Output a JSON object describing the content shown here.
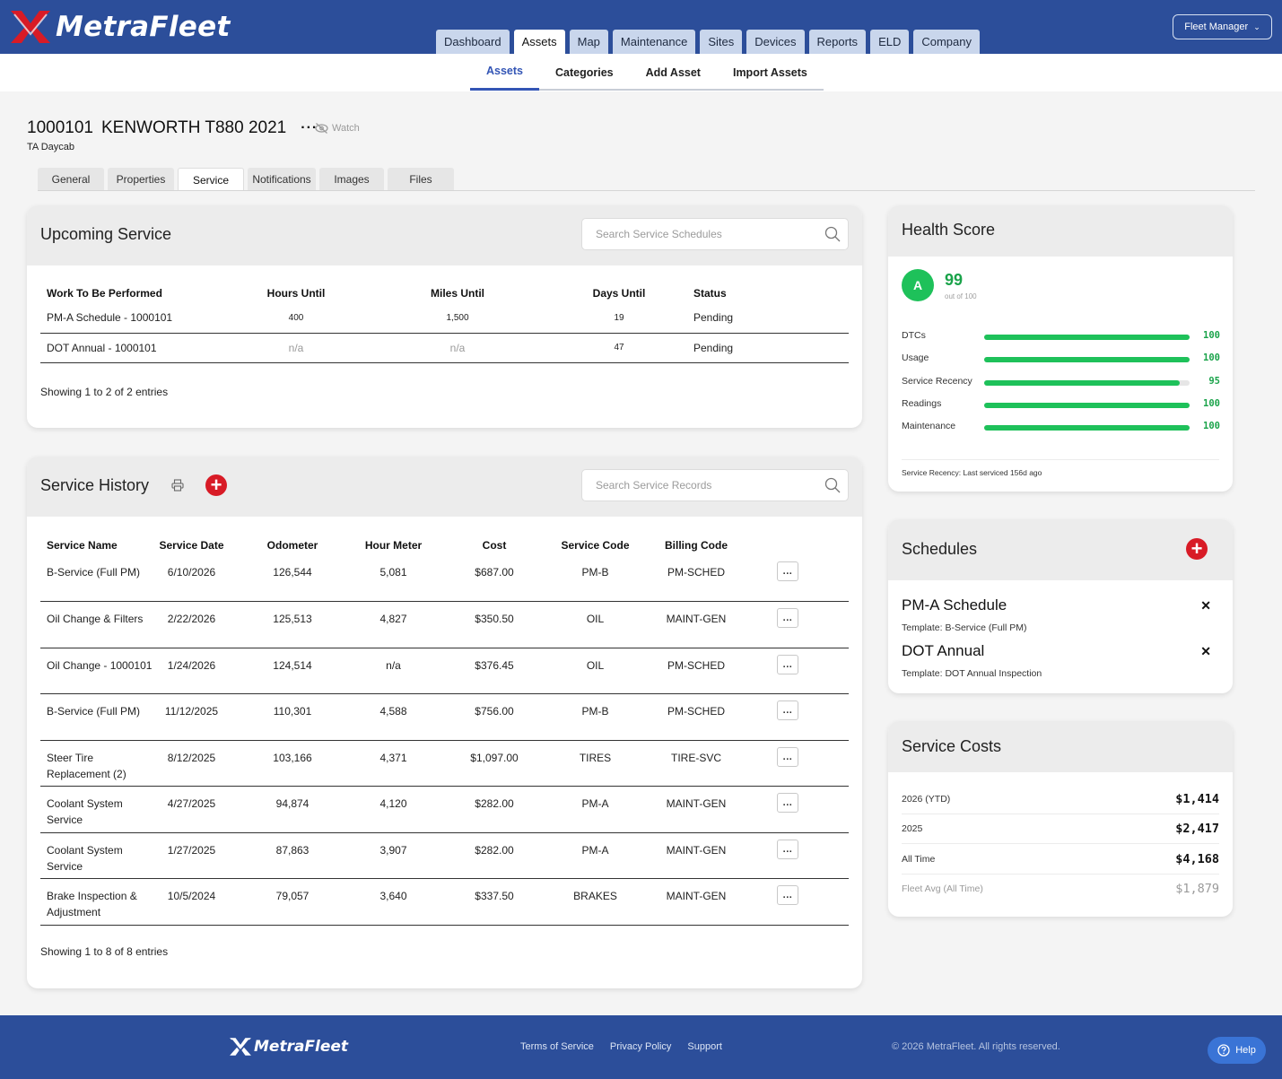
{
  "brand": {
    "name": "MetraFleet",
    "accent": "#2c4e9a",
    "danger": "#d81b26",
    "success": "#1ec15a"
  },
  "main_nav": [
    "Dashboard",
    "Assets",
    "Map",
    "Maintenance",
    "Sites",
    "Devices",
    "Reports",
    "ELD",
    "Company"
  ],
  "main_nav_active": "Assets",
  "user_menu": {
    "label": "Fleet Manager",
    "icon": "chevron-down-icon"
  },
  "sub_nav": [
    "Assets",
    "Categories",
    "Add Asset",
    "Import Assets"
  ],
  "sub_nav_active": "Assets",
  "asset": {
    "id": "1000101",
    "name": "KENWORTH T880 2021",
    "more": "···",
    "watch_label": "Watch",
    "subtitle": "TA Daycab"
  },
  "asset_tabs": [
    "General",
    "Properties",
    "Service",
    "Notifications",
    "Images",
    "Files"
  ],
  "asset_tab_active": "Service",
  "upcoming": {
    "title": "Upcoming Service",
    "search_placeholder": "Search Service Schedules",
    "columns": [
      "Work To Be Performed",
      "Hours Until",
      "Miles Until",
      "Days Until",
      "Status"
    ],
    "rows": [
      {
        "work": "PM-A Schedule - 1000101",
        "hours": "400",
        "miles": "1,500",
        "days": "19",
        "status": "Pending"
      },
      {
        "work": "DOT Annual - 1000101",
        "hours": "n/a",
        "miles": "n/a",
        "days": "47",
        "status": "Pending"
      }
    ],
    "info": "Showing 1 to 2 of 2 entries"
  },
  "history": {
    "title": "Service History",
    "search_placeholder": "Search Service Records",
    "columns": [
      "Service Name",
      "Service Date",
      "Odometer",
      "Hour Meter",
      "Cost",
      "Service Code",
      "Billing Code"
    ],
    "row_action": "...",
    "rows": [
      {
        "name": "B-Service (Full PM)",
        "date": "6/10/2026",
        "odometer": "126,544",
        "hours": "5,081",
        "cost": "$687.00",
        "code": "PM-B",
        "billing": "PM-SCHED"
      },
      {
        "name": "Oil Change & Filters",
        "date": "2/22/2026",
        "odometer": "125,513",
        "hours": "4,827",
        "cost": "$350.50",
        "code": "OIL",
        "billing": "MAINT-GEN"
      },
      {
        "name": "Oil Change - 1000101",
        "date": "1/24/2026",
        "odometer": "124,514",
        "hours": "n/a",
        "cost": "$376.45",
        "code": "OIL",
        "billing": "PM-SCHED"
      },
      {
        "name": "B-Service (Full PM)",
        "date": "11/12/2025",
        "odometer": "110,301",
        "hours": "4,588",
        "cost": "$756.00",
        "code": "PM-B",
        "billing": "PM-SCHED"
      },
      {
        "name": "Steer Tire Replacement (2)",
        "date": "8/12/2025",
        "odometer": "103,166",
        "hours": "4,371",
        "cost": "$1,097.00",
        "code": "TIRES",
        "billing": "TIRE-SVC"
      },
      {
        "name": "Coolant System Service",
        "date": "4/27/2025",
        "odometer": "94,874",
        "hours": "4,120",
        "cost": "$282.00",
        "code": "PM-A",
        "billing": "MAINT-GEN"
      },
      {
        "name": "Coolant System Service",
        "date": "1/27/2025",
        "odometer": "87,863",
        "hours": "3,907",
        "cost": "$282.00",
        "code": "PM-A",
        "billing": "MAINT-GEN"
      },
      {
        "name": "Brake Inspection & Adjustment",
        "date": "10/5/2024",
        "odometer": "79,057",
        "hours": "3,640",
        "cost": "$337.50",
        "code": "BRAKES",
        "billing": "MAINT-GEN"
      }
    ],
    "info": "Showing 1 to 8 of 8 entries"
  },
  "health": {
    "title": "Health Score",
    "grade": "A",
    "score": "99",
    "score_sub": "out of 100",
    "metrics": [
      {
        "label": "DTCs",
        "value": 100
      },
      {
        "label": "Usage",
        "value": 100
      },
      {
        "label": "Service Recency",
        "value": 95
      },
      {
        "label": "Readings",
        "value": 100
      },
      {
        "label": "Maintenance",
        "value": 100
      }
    ],
    "note": "Service Recency: Last serviced 156d ago"
  },
  "schedules": {
    "title": "Schedules",
    "items": [
      {
        "name": "PM-A Schedule",
        "template": "Template: B-Service (Full PM)"
      },
      {
        "name": "DOT Annual",
        "template": "Template: DOT Annual Inspection"
      }
    ]
  },
  "costs": {
    "title": "Service Costs",
    "rows": [
      {
        "label": "2026 (YTD)",
        "value": "$1,414"
      },
      {
        "label": "2025",
        "value": "$2,417"
      },
      {
        "label": "All Time",
        "value": "$4,168"
      },
      {
        "label": "Fleet Avg (All Time)",
        "value": "$1,879"
      }
    ]
  },
  "footer": {
    "links": [
      "Terms of Service",
      "Privacy Policy",
      "Support"
    ],
    "copyright": "© 2026 MetraFleet. All rights reserved.",
    "help_label": "Help"
  }
}
